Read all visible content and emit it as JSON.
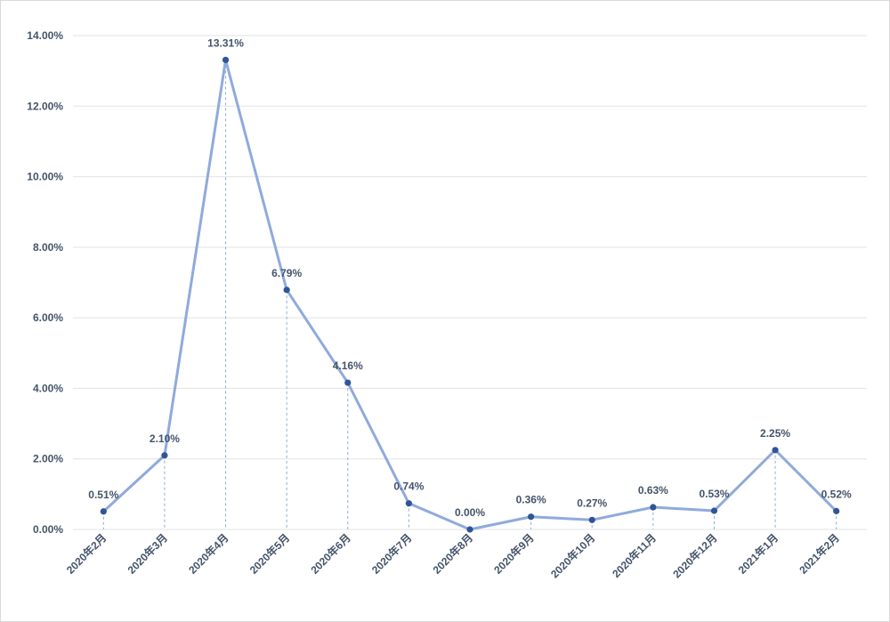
{
  "chart_data": {
    "type": "line",
    "title": "",
    "xlabel": "",
    "ylabel": "",
    "categories": [
      "2020年2月",
      "2020年3月",
      "2020年4月",
      "2020年5月",
      "2020年6月",
      "2020年7月",
      "2020年8月",
      "2020年9月",
      "2020年10月",
      "2020年11月",
      "2020年12月",
      "2021年1月",
      "2021年2月"
    ],
    "series": [
      {
        "values": [
          0.51,
          2.1,
          13.31,
          6.79,
          4.16,
          0.74,
          0.0,
          0.36,
          0.27,
          0.63,
          0.53,
          2.25,
          0.52
        ],
        "labels": [
          "0.51%",
          "2.10%",
          "13.31%",
          "6.79%",
          "4.16%",
          "0.74%",
          "0.00%",
          "0.36%",
          "0.27%",
          "0.63%",
          "0.53%",
          "2.25%",
          "0.52%"
        ]
      }
    ],
    "ylim": [
      0,
      14
    ],
    "yticks": [
      0,
      2,
      4,
      6,
      8,
      10,
      12,
      14
    ],
    "ytick_labels": [
      "0.00%",
      "2.00%",
      "4.00%",
      "6.00%",
      "8.00%",
      "10.00%",
      "12.00%",
      "14.00%"
    ],
    "grid": true,
    "drop_lines": true,
    "colors": {
      "line": "#8faadc",
      "marker": "#2f5597",
      "text": "#44546a",
      "grid": "#e3e3e3",
      "drop": "#8faadc"
    }
  }
}
